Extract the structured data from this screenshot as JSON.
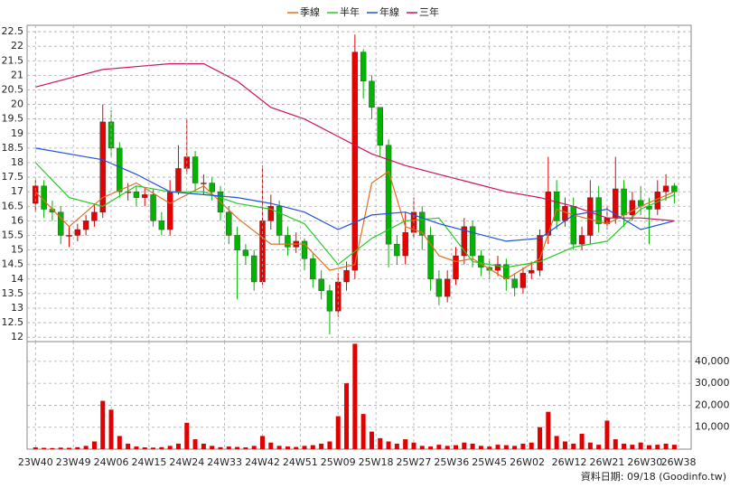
{
  "chart_data": [
    {
      "type": "candlestick",
      "x": [
        0,
        2,
        4,
        6,
        8,
        10,
        12,
        14,
        16,
        18,
        20,
        22,
        24,
        26,
        28,
        30,
        32,
        34,
        36,
        38,
        40,
        42,
        44,
        46,
        48,
        50,
        52,
        54,
        56,
        58,
        60,
        62,
        64,
        66,
        68,
        70,
        72,
        74,
        76,
        78,
        80,
        82,
        84,
        86,
        88,
        90,
        92,
        94,
        96,
        98,
        100,
        102,
        104,
        106,
        108,
        110,
        112,
        114,
        116,
        118,
        120,
        122,
        124,
        126,
        128,
        130,
        132,
        134,
        136,
        138,
        140,
        142,
        144,
        146,
        148,
        150,
        152
      ],
      "open": [
        16.6,
        17.2,
        16.4,
        16.3,
        15.5,
        15.5,
        15.7,
        16.0,
        16.3,
        19.4,
        18.5,
        17.0,
        17.0,
        16.8,
        16.9,
        16.0,
        15.7,
        17.0,
        17.8,
        18.2,
        17.3,
        17.3,
        17.0,
        16.3,
        15.5,
        15.0,
        14.8,
        13.9,
        16.0,
        16.5,
        15.5,
        15.1,
        15.3,
        14.7,
        14.0,
        13.6,
        12.9,
        13.9,
        14.3,
        21.8,
        20.8,
        19.9,
        18.6,
        15.2,
        14.8,
        15.6,
        16.3,
        15.5,
        14.0,
        13.4,
        14.0,
        14.8,
        15.8,
        14.8,
        14.4,
        14.3,
        14.5,
        14.0,
        13.7,
        14.2,
        14.3,
        15.5,
        17.0,
        16.0,
        16.5,
        15.2,
        15.5,
        16.8,
        15.9,
        16.1,
        17.1,
        16.2,
        16.7,
        16.5,
        16.4,
        17.0,
        17.2
      ],
      "high": [
        17.4,
        17.4,
        16.7,
        16.5,
        15.8,
        15.9,
        16.2,
        16.6,
        20.0,
        19.8,
        18.7,
        17.3,
        17.2,
        17.1,
        17.1,
        16.3,
        17.4,
        18.6,
        19.5,
        18.4,
        17.6,
        17.5,
        17.2,
        16.5,
        15.8,
        15.2,
        15.0,
        17.9,
        16.9,
        16.7,
        15.8,
        15.6,
        15.4,
        14.9,
        14.3,
        13.8,
        14.2,
        14.6,
        22.4,
        21.9,
        21.0,
        19.9,
        18.8,
        15.5,
        16.3,
        16.8,
        16.5,
        15.8,
        14.3,
        14.3,
        15.1,
        16.1,
        16.0,
        15.0,
        14.7,
        14.8,
        14.7,
        14.2,
        14.4,
        14.6,
        15.7,
        18.2,
        17.4,
        16.8,
        16.8,
        15.8,
        17.4,
        17.2,
        16.5,
        18.2,
        17.4,
        17.0,
        17.2,
        16.8,
        17.4,
        17.6,
        17.3
      ],
      "low": [
        16.3,
        16.1,
        16.0,
        15.2,
        15.1,
        15.3,
        15.5,
        15.8,
        16.1,
        18.2,
        16.8,
        16.7,
        16.5,
        16.5,
        15.8,
        15.5,
        15.5,
        16.9,
        17.6,
        17.0,
        16.9,
        16.7,
        16.0,
        15.2,
        13.3,
        14.5,
        13.6,
        13.8,
        15.7,
        15.2,
        14.8,
        14.9,
        14.3,
        13.7,
        13.3,
        12.1,
        12.7,
        13.6,
        14.0,
        20.2,
        19.5,
        18.2,
        14.4,
        14.5,
        14.5,
        15.4,
        15.0,
        13.6,
        13.1,
        13.2,
        13.8,
        14.5,
        14.4,
        14.1,
        14.0,
        14.1,
        13.6,
        13.4,
        13.5,
        14.0,
        14.1,
        15.2,
        15.7,
        15.8,
        15.0,
        15.0,
        15.2,
        15.6,
        15.7,
        15.9,
        15.8,
        16.0,
        16.2,
        15.2,
        16.2,
        16.7,
        16.6
      ],
      "close": [
        17.2,
        16.4,
        16.3,
        15.5,
        15.5,
        15.7,
        16.0,
        16.3,
        19.4,
        18.5,
        17.0,
        17.0,
        16.8,
        16.9,
        16.0,
        15.7,
        17.0,
        17.8,
        18.2,
        17.3,
        17.3,
        17.0,
        16.3,
        15.5,
        15.0,
        14.8,
        13.9,
        16.0,
        16.5,
        15.5,
        15.1,
        15.3,
        14.7,
        14.0,
        13.6,
        12.9,
        13.9,
        14.3,
        21.8,
        20.8,
        19.9,
        18.6,
        15.2,
        14.8,
        15.6,
        16.3,
        15.5,
        14.0,
        13.4,
        14.0,
        14.8,
        15.8,
        14.8,
        14.4,
        14.3,
        14.5,
        14.0,
        13.7,
        14.2,
        14.3,
        15.5,
        17.0,
        16.0,
        16.5,
        15.2,
        15.5,
        16.8,
        15.9,
        16.1,
        17.1,
        16.2,
        16.7,
        16.5,
        16.4,
        17.0,
        17.2,
        17.0
      ],
      "up_color": "#e60000",
      "down_color": "#00b400",
      "series": [
        {
          "name": "季線",
          "color": "#e07020",
          "x": [
            0,
            8,
            16,
            24,
            32,
            40,
            48,
            56,
            64,
            70,
            76,
            80,
            84,
            88,
            92,
            96,
            100,
            104,
            112,
            120,
            124,
            128,
            136,
            144,
            152
          ],
          "values": [
            17.0,
            15.8,
            16.8,
            17.3,
            16.6,
            17.2,
            16.1,
            15.2,
            15.2,
            14.3,
            14.5,
            17.3,
            17.7,
            15.8,
            15.6,
            14.8,
            14.6,
            14.7,
            14.0,
            14.7,
            16.4,
            16.2,
            15.9,
            16.5,
            17.0
          ]
        },
        {
          "name": "半年",
          "color": "#22cc22",
          "x": [
            0,
            8,
            16,
            24,
            32,
            40,
            48,
            56,
            64,
            72,
            80,
            88,
            96,
            104,
            112,
            120,
            128,
            136,
            144,
            152
          ],
          "values": [
            18.0,
            16.8,
            16.5,
            17.2,
            17.0,
            17.0,
            16.6,
            16.4,
            15.9,
            14.5,
            15.4,
            16.0,
            16.1,
            14.6,
            14.4,
            14.6,
            15.1,
            15.3,
            16.4,
            16.9
          ]
        },
        {
          "name": "年線",
          "color": "#2050e0",
          "x": [
            0,
            8,
            16,
            24,
            32,
            40,
            48,
            56,
            64,
            72,
            80,
            88,
            96,
            104,
            112,
            120,
            128,
            136,
            144,
            152
          ],
          "values": [
            18.5,
            18.3,
            18.1,
            17.6,
            17.0,
            16.9,
            16.8,
            16.6,
            16.3,
            15.7,
            16.2,
            16.3,
            15.9,
            15.6,
            15.3,
            15.4,
            16.2,
            16.4,
            15.7,
            16.0
          ]
        },
        {
          "name": "三年",
          "color": "#d01060",
          "x": [
            0,
            8,
            16,
            24,
            32,
            40,
            48,
            56,
            64,
            72,
            80,
            88,
            96,
            104,
            112,
            120,
            128,
            136,
            144,
            152
          ],
          "values": [
            20.6,
            20.9,
            21.2,
            21.3,
            21.4,
            21.4,
            20.8,
            19.9,
            19.5,
            18.9,
            18.3,
            17.9,
            17.6,
            17.3,
            17.0,
            16.8,
            16.5,
            16.1,
            16.1,
            16.0
          ]
        }
      ],
      "xlim": [
        -2,
        156
      ],
      "ylim": [
        11.85,
        22.72
      ],
      "yticks": [
        12,
        12.5,
        13,
        13.5,
        14,
        14.5,
        15,
        15.5,
        16,
        16.5,
        17,
        17.5,
        18,
        18.5,
        19,
        19.5,
        20,
        20.5,
        21,
        21.5,
        22,
        22.5
      ],
      "grid": true
    },
    {
      "type": "bar",
      "x": [
        0,
        2,
        4,
        6,
        8,
        10,
        12,
        14,
        16,
        18,
        20,
        22,
        24,
        26,
        28,
        30,
        32,
        34,
        36,
        38,
        40,
        42,
        44,
        46,
        48,
        50,
        52,
        54,
        56,
        58,
        60,
        62,
        64,
        66,
        68,
        70,
        72,
        74,
        76,
        78,
        80,
        82,
        84,
        86,
        88,
        90,
        92,
        94,
        96,
        98,
        100,
        102,
        104,
        106,
        108,
        110,
        112,
        114,
        116,
        118,
        120,
        122,
        124,
        126,
        128,
        130,
        132,
        134,
        136,
        138,
        140,
        142,
        144,
        146,
        148,
        150,
        152
      ],
      "values": [
        800,
        600,
        500,
        700,
        600,
        900,
        1500,
        3500,
        22000,
        18000,
        6000,
        2500,
        1200,
        800,
        700,
        900,
        1500,
        2500,
        12000,
        4500,
        2500,
        1500,
        900,
        1200,
        1000,
        800,
        1500,
        6000,
        3000,
        1500,
        1200,
        1000,
        1500,
        1800,
        2500,
        3500,
        15000,
        30000,
        48000,
        16000,
        8000,
        5000,
        3500,
        2500,
        4500,
        3000,
        1500,
        1200,
        2000,
        1500,
        1800,
        3000,
        2500,
        1500,
        1200,
        2000,
        1800,
        1500,
        2500,
        3000,
        10000,
        17000,
        6000,
        3500,
        2500,
        7000,
        3000,
        2000,
        13000,
        4500,
        2500,
        2000,
        3000,
        1800,
        2000,
        2500,
        2000
      ],
      "color": "#e00000",
      "xlim": [
        -2,
        156
      ],
      "ylim": [
        0,
        49000
      ],
      "yticks": [
        {
          "value": 10000,
          "label": "10,000"
        },
        {
          "value": 20000,
          "label": "20,000"
        },
        {
          "value": 30000,
          "label": "30,000"
        },
        {
          "value": 40000,
          "label": "40,000"
        }
      ],
      "xticks": [
        {
          "value": 0,
          "label": "23W40"
        },
        {
          "value": 9,
          "label": "23W49"
        },
        {
          "value": 18,
          "label": "24W06"
        },
        {
          "value": 27,
          "label": "24W15"
        },
        {
          "value": 36,
          "label": "24W24"
        },
        {
          "value": 45,
          "label": "24W33"
        },
        {
          "value": 54,
          "label": "24W42"
        },
        {
          "value": 63,
          "label": "24W51"
        },
        {
          "value": 72,
          "label": "25W09"
        },
        {
          "value": 81,
          "label": "25W18"
        },
        {
          "value": 90,
          "label": "25W27"
        },
        {
          "value": 99,
          "label": "25W36"
        },
        {
          "value": 108,
          "label": "25W45"
        },
        {
          "value": 117,
          "label": "26W02"
        },
        {
          "value": 127,
          "label": "26W12"
        },
        {
          "value": 136,
          "label": "26W21"
        },
        {
          "value": 145,
          "label": "26W30"
        },
        {
          "value": 153,
          "label": "26W38"
        }
      ],
      "grid": true
    }
  ],
  "footer": "資料日期: 09/18 (Goodinfo.tw)"
}
